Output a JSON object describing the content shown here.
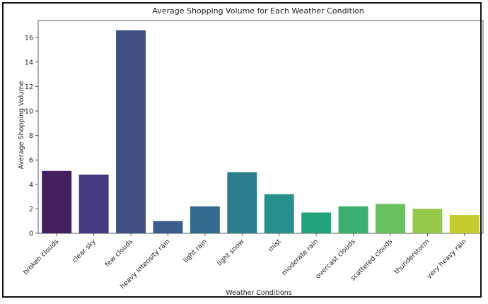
{
  "chart_data": {
    "type": "bar",
    "title": "Average Shopping Volume for Each Weather Condition",
    "xlabel": "Weather Conditions",
    "ylabel": "Average Shopping Volume",
    "categories": [
      "broken clouds",
      "clear sky",
      "few clouds",
      "heavy intensity rain",
      "light rain",
      "light snow",
      "mist",
      "moderate rain",
      "overcast clouds",
      "scattered clouds",
      "thunderstorm",
      "very heavy rain"
    ],
    "values": [
      5.1,
      4.8,
      16.6,
      1.0,
      2.2,
      5.0,
      3.2,
      1.7,
      2.2,
      2.4,
      2.0,
      1.5
    ],
    "colors": [
      "#45205f",
      "#443a80",
      "#414f82",
      "#3a5d8c",
      "#336b8c",
      "#2a7d8c",
      "#29918b",
      "#22a37c",
      "#3aaf71",
      "#6abf5f",
      "#96c94a",
      "#c4cb2e"
    ],
    "yticks": [
      0,
      2,
      4,
      6,
      8,
      10,
      12,
      14,
      16
    ],
    "ylim": [
      0,
      17.4
    ],
    "grid": false,
    "legend": "none"
  }
}
